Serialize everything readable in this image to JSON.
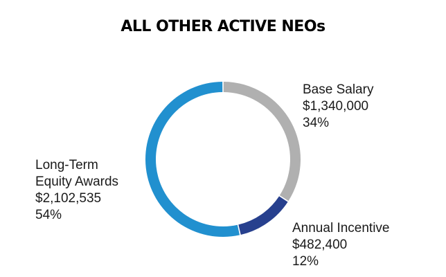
{
  "chart_data": {
    "type": "pie",
    "title": "ALL OTHER ACTIVE NEOs",
    "slices": [
      {
        "label_lines": [
          "Base Salary"
        ],
        "amount": "$1,340,000",
        "percent_label": "34%",
        "value": 1340000,
        "percent": 34,
        "color": "#b0b0b0"
      },
      {
        "label_lines": [
          "Annual Incentive"
        ],
        "amount": "$482,400",
        "percent_label": "12%",
        "value": 482400,
        "percent": 12,
        "color": "#27408e"
      },
      {
        "label_lines": [
          "Long-Term",
          "Equity Awards"
        ],
        "amount": "$2,102,535",
        "percent_label": "54%",
        "value": 2102535,
        "percent": 54,
        "color": "#2190cf"
      }
    ],
    "legend": "none"
  }
}
